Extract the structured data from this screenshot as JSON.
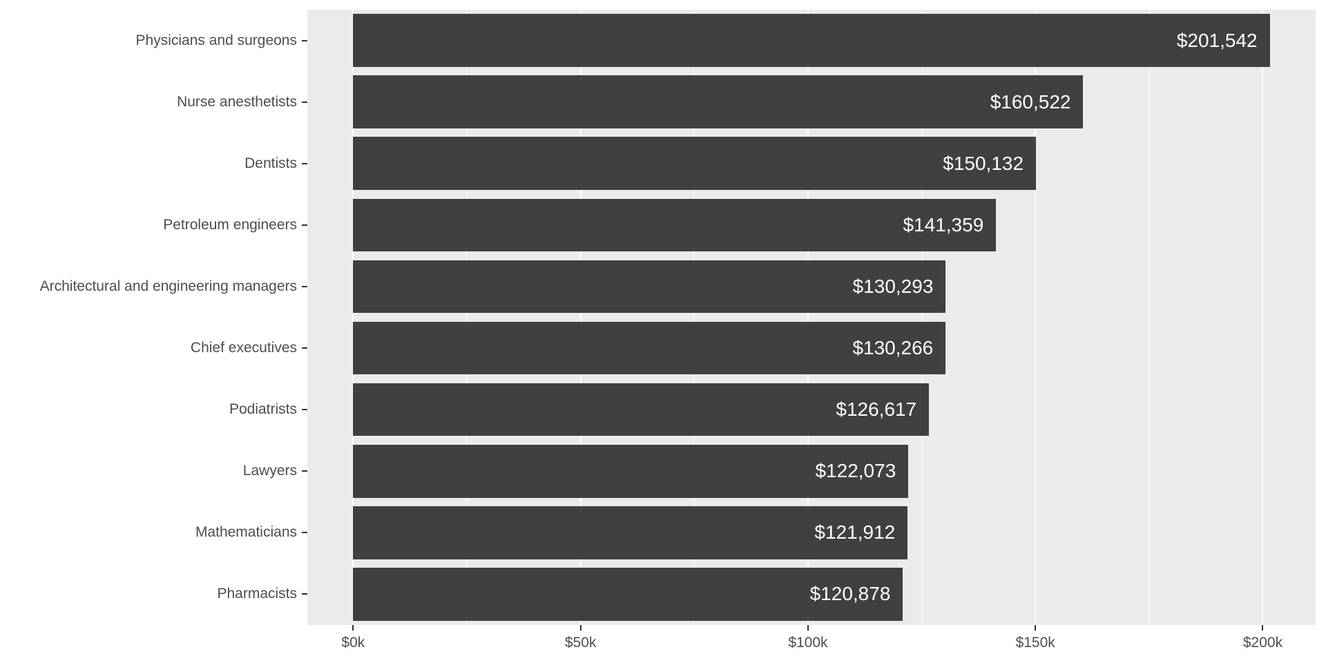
{
  "chart_data": {
    "type": "bar",
    "orientation": "horizontal",
    "title": "",
    "xlabel": "",
    "ylabel": "",
    "categories": [
      "Physicians and surgeons",
      "Nurse anesthetists",
      "Dentists",
      "Petroleum engineers",
      "Architectural and engineering managers",
      "Chief executives",
      "Podiatrists",
      "Lawyers",
      "Mathematicians",
      "Pharmacists"
    ],
    "values": [
      201542,
      160522,
      150132,
      141359,
      130293,
      130266,
      126617,
      122073,
      121912,
      120878
    ],
    "value_labels": [
      "$201,542",
      "$160,522",
      "$150,132",
      "$141,359",
      "$130,293",
      "$130,266",
      "$126,617",
      "$122,073",
      "$121,912",
      "$120,878"
    ],
    "x_axis": {
      "min": -10077,
      "max": 211619,
      "major_ticks": [
        {
          "value": 0,
          "label": "$0k"
        },
        {
          "value": 50000,
          "label": "$50k"
        },
        {
          "value": 100000,
          "label": "$100k"
        },
        {
          "value": 150000,
          "label": "$150k"
        },
        {
          "value": 200000,
          "label": "$200k"
        }
      ],
      "minor_ticks": [
        25000,
        75000,
        125000,
        175000
      ]
    },
    "legend": "none",
    "grid": "on",
    "colors": {
      "bar": "#404040",
      "panel_background": "#EBEBEB",
      "grid_major": "#FFFFFF",
      "grid_minor": "#FFFFFF",
      "axis_text": "#4D4D4D",
      "tick_mark": "#333333",
      "bar_label": "#FFFFFF"
    }
  }
}
